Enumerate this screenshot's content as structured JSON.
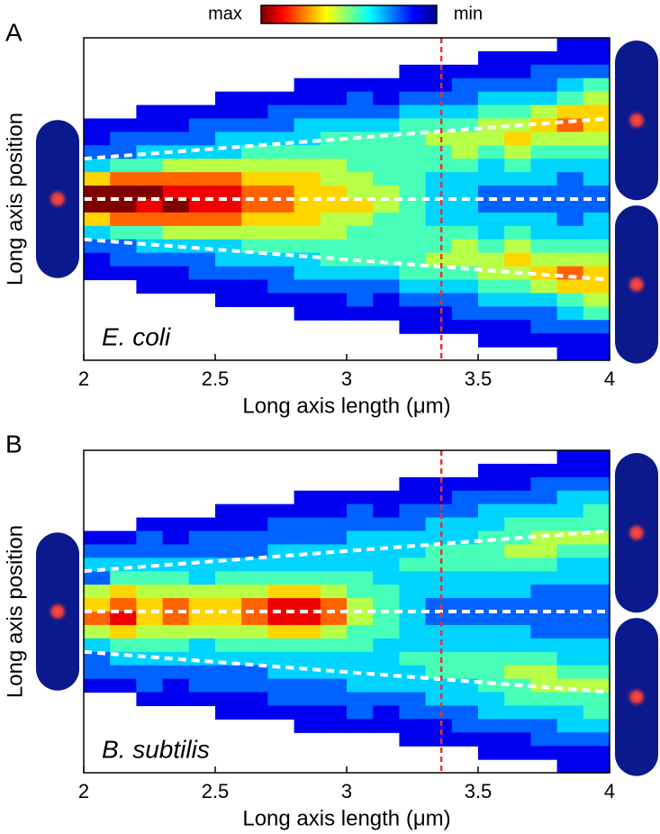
{
  "colorbar": {
    "max_label": "max",
    "min_label": "min"
  },
  "chart_data": [
    {
      "type": "heatmap",
      "panel": "A",
      "annotation": "E. coli",
      "xlabel": "Long axis length (μm)",
      "ylabel": "Long axis position",
      "xlim": [
        2,
        4
      ],
      "xticks": [
        2,
        2.5,
        3,
        3.5,
        4
      ],
      "vline": 3.36,
      "colormap": "jet",
      "zlim": [
        0,
        9
      ],
      "z": [
        [
          null,
          null,
          null,
          null,
          null,
          null,
          1,
          1,
          2,
          3,
          6,
          9,
          9,
          6,
          3,
          2,
          1,
          1,
          null,
          null,
          null,
          null,
          null,
          null
        ],
        [
          null,
          null,
          null,
          null,
          null,
          null,
          1,
          2,
          2,
          4,
          7,
          9,
          9,
          7,
          4,
          2,
          2,
          1,
          null,
          null,
          null,
          null,
          null,
          null
        ],
        [
          null,
          null,
          null,
          null,
          null,
          1,
          1,
          2,
          3,
          4,
          7,
          9,
          8,
          7,
          4,
          3,
          2,
          1,
          1,
          null,
          null,
          null,
          null,
          null
        ],
        [
          null,
          null,
          null,
          null,
          null,
          1,
          1,
          2,
          3,
          5,
          7,
          8,
          9,
          7,
          5,
          3,
          2,
          1,
          1,
          null,
          null,
          null,
          null,
          null
        ],
        [
          null,
          null,
          null,
          null,
          null,
          1,
          2,
          2,
          3,
          5,
          7,
          8,
          8,
          7,
          5,
          3,
          2,
          2,
          1,
          null,
          null,
          null,
          null,
          null
        ],
        [
          null,
          null,
          null,
          null,
          1,
          1,
          2,
          3,
          3,
          5,
          7,
          8,
          8,
          7,
          5,
          3,
          3,
          2,
          1,
          1,
          null,
          null,
          null,
          null
        ],
        [
          null,
          null,
          null,
          null,
          1,
          1,
          2,
          3,
          4,
          5,
          6,
          7,
          7,
          6,
          5,
          4,
          3,
          2,
          1,
          1,
          null,
          null,
          null,
          null
        ],
        [
          null,
          null,
          null,
          null,
          1,
          2,
          2,
          3,
          4,
          5,
          6,
          7,
          7,
          6,
          5,
          4,
          3,
          2,
          2,
          1,
          null,
          null,
          null,
          null
        ],
        [
          null,
          null,
          null,
          1,
          1,
          2,
          3,
          3,
          4,
          5,
          6,
          6,
          6,
          6,
          5,
          4,
          3,
          3,
          2,
          1,
          1,
          null,
          null,
          null
        ],
        [
          null,
          null,
          null,
          1,
          1,
          2,
          3,
          4,
          4,
          5,
          5,
          6,
          6,
          5,
          5,
          4,
          4,
          3,
          2,
          1,
          1,
          null,
          null,
          null
        ],
        [
          null,
          null,
          null,
          1,
          2,
          2,
          3,
          4,
          4,
          4,
          5,
          5,
          6,
          5,
          4,
          4,
          4,
          3,
          2,
          2,
          1,
          null,
          null,
          null
        ],
        [
          null,
          null,
          null,
          1,
          1,
          2,
          3,
          4,
          4,
          4,
          4,
          5,
          5,
          4,
          4,
          4,
          4,
          3,
          2,
          1,
          1,
          null,
          null,
          null
        ],
        [
          null,
          null,
          1,
          1,
          2,
          3,
          4,
          4,
          4,
          4,
          4,
          4,
          4,
          4,
          4,
          4,
          4,
          4,
          3,
          2,
          1,
          1,
          null,
          null
        ],
        [
          null,
          null,
          1,
          1,
          2,
          3,
          4,
          5,
          4,
          4,
          3,
          3,
          3,
          3,
          4,
          4,
          5,
          4,
          3,
          2,
          1,
          1,
          null,
          null
        ],
        [
          null,
          null,
          1,
          2,
          2,
          3,
          4,
          5,
          5,
          4,
          3,
          3,
          3,
          3,
          4,
          5,
          5,
          4,
          3,
          2,
          2,
          1,
          null,
          null
        ],
        [
          null,
          1,
          1,
          2,
          3,
          4,
          5,
          5,
          4,
          3,
          3,
          2,
          2,
          3,
          3,
          4,
          5,
          5,
          4,
          3,
          2,
          1,
          1,
          null
        ],
        [
          null,
          1,
          1,
          2,
          3,
          4,
          5,
          6,
          5,
          4,
          3,
          2,
          2,
          3,
          4,
          5,
          6,
          5,
          4,
          3,
          2,
          1,
          1,
          null
        ],
        [
          null,
          1,
          2,
          2,
          3,
          5,
          6,
          5,
          4,
          3,
          3,
          2,
          2,
          3,
          3,
          4,
          5,
          6,
          5,
          3,
          2,
          2,
          1,
          null
        ],
        [
          1,
          1,
          2,
          3,
          4,
          6,
          7,
          5,
          4,
          3,
          2,
          2,
          2,
          2,
          3,
          4,
          5,
          7,
          6,
          4,
          3,
          2,
          1,
          1
        ],
        [
          1,
          1,
          2,
          4,
          5,
          6,
          6,
          5,
          4,
          3,
          3,
          2,
          2,
          3,
          3,
          4,
          5,
          6,
          6,
          5,
          4,
          2,
          1,
          1
        ]
      ]
    },
    {
      "type": "heatmap",
      "panel": "B",
      "annotation": "B. subtilis",
      "xlabel": "Long axis length (μm)",
      "ylabel": "Long axis position",
      "xlim": [
        2,
        4
      ],
      "xticks": [
        2,
        2.5,
        3,
        3.5,
        4
      ],
      "vline": 3.36,
      "colormap": "jet",
      "zlim": [
        0,
        9
      ],
      "z": [
        [
          null,
          null,
          null,
          null,
          null,
          null,
          1,
          2,
          3,
          2,
          5,
          6,
          7,
          5,
          3,
          2,
          2,
          1,
          null,
          null,
          null,
          null,
          null,
          null
        ],
        [
          null,
          null,
          null,
          null,
          null,
          null,
          1,
          2,
          3,
          4,
          6,
          7,
          8,
          6,
          4,
          3,
          2,
          1,
          null,
          null,
          null,
          null,
          null,
          null
        ],
        [
          null,
          null,
          null,
          null,
          null,
          1,
          2,
          2,
          3,
          4,
          5,
          6,
          6,
          5,
          4,
          3,
          2,
          2,
          1,
          null,
          null,
          null,
          null,
          null
        ],
        [
          null,
          null,
          null,
          null,
          null,
          1,
          1,
          2,
          3,
          4,
          5,
          7,
          7,
          5,
          4,
          3,
          2,
          1,
          1,
          null,
          null,
          null,
          null,
          null
        ],
        [
          null,
          null,
          null,
          null,
          null,
          1,
          2,
          2,
          3,
          3,
          5,
          6,
          6,
          5,
          3,
          3,
          2,
          2,
          1,
          null,
          null,
          null,
          null,
          null
        ],
        [
          null,
          null,
          null,
          null,
          1,
          1,
          2,
          2,
          3,
          4,
          5,
          6,
          6,
          5,
          4,
          3,
          2,
          2,
          1,
          1,
          null,
          null,
          null,
          null
        ],
        [
          null,
          null,
          null,
          null,
          1,
          1,
          2,
          2,
          3,
          4,
          5,
          7,
          7,
          5,
          4,
          3,
          2,
          2,
          1,
          1,
          null,
          null,
          null,
          null
        ],
        [
          null,
          null,
          null,
          null,
          1,
          2,
          2,
          3,
          3,
          4,
          6,
          8,
          8,
          6,
          4,
          3,
          3,
          2,
          2,
          1,
          null,
          null,
          null,
          null
        ],
        [
          null,
          null,
          null,
          1,
          1,
          2,
          2,
          3,
          3,
          4,
          6,
          8,
          8,
          6,
          4,
          3,
          3,
          2,
          2,
          1,
          1,
          null,
          null,
          null
        ],
        [
          null,
          null,
          null,
          1,
          1,
          2,
          2,
          3,
          3,
          4,
          5,
          7,
          7,
          5,
          4,
          3,
          3,
          2,
          2,
          1,
          1,
          null,
          null,
          null
        ],
        [
          null,
          null,
          null,
          1,
          2,
          2,
          3,
          3,
          3,
          4,
          4,
          5,
          5,
          4,
          4,
          3,
          3,
          3,
          2,
          2,
          1,
          null,
          null,
          null
        ],
        [
          null,
          null,
          null,
          1,
          1,
          2,
          3,
          3,
          3,
          3,
          4,
          4,
          4,
          4,
          3,
          3,
          3,
          3,
          2,
          1,
          1,
          null,
          null,
          null
        ],
        [
          null,
          null,
          1,
          1,
          2,
          2,
          3,
          3,
          4,
          3,
          3,
          3,
          3,
          3,
          3,
          4,
          3,
          3,
          2,
          2,
          1,
          1,
          null,
          null
        ],
        [
          null,
          null,
          1,
          1,
          2,
          3,
          3,
          4,
          4,
          3,
          3,
          2,
          2,
          3,
          3,
          4,
          4,
          3,
          3,
          2,
          1,
          1,
          null,
          null
        ],
        [
          null,
          null,
          1,
          2,
          2,
          3,
          3,
          4,
          4,
          3,
          3,
          2,
          2,
          3,
          3,
          4,
          4,
          3,
          3,
          2,
          2,
          1,
          null,
          null
        ],
        [
          null,
          1,
          1,
          2,
          3,
          3,
          4,
          4,
          4,
          3,
          3,
          2,
          2,
          3,
          3,
          4,
          4,
          4,
          3,
          3,
          2,
          1,
          1,
          null
        ],
        [
          null,
          1,
          1,
          2,
          3,
          4,
          4,
          5,
          4,
          3,
          3,
          2,
          2,
          3,
          3,
          4,
          5,
          4,
          4,
          3,
          2,
          1,
          1,
          null
        ],
        [
          null,
          1,
          2,
          2,
          3,
          4,
          5,
          5,
          4,
          3,
          2,
          2,
          2,
          2,
          3,
          4,
          5,
          5,
          4,
          3,
          2,
          2,
          1,
          null
        ],
        [
          1,
          1,
          2,
          3,
          3,
          4,
          5,
          4,
          3,
          3,
          2,
          2,
          2,
          2,
          3,
          3,
          4,
          5,
          4,
          3,
          3,
          2,
          1,
          1
        ],
        [
          1,
          1,
          2,
          3,
          4,
          4,
          5,
          4,
          3,
          3,
          2,
          2,
          2,
          2,
          3,
          3,
          4,
          5,
          4,
          4,
          3,
          2,
          1,
          1
        ]
      ]
    }
  ]
}
